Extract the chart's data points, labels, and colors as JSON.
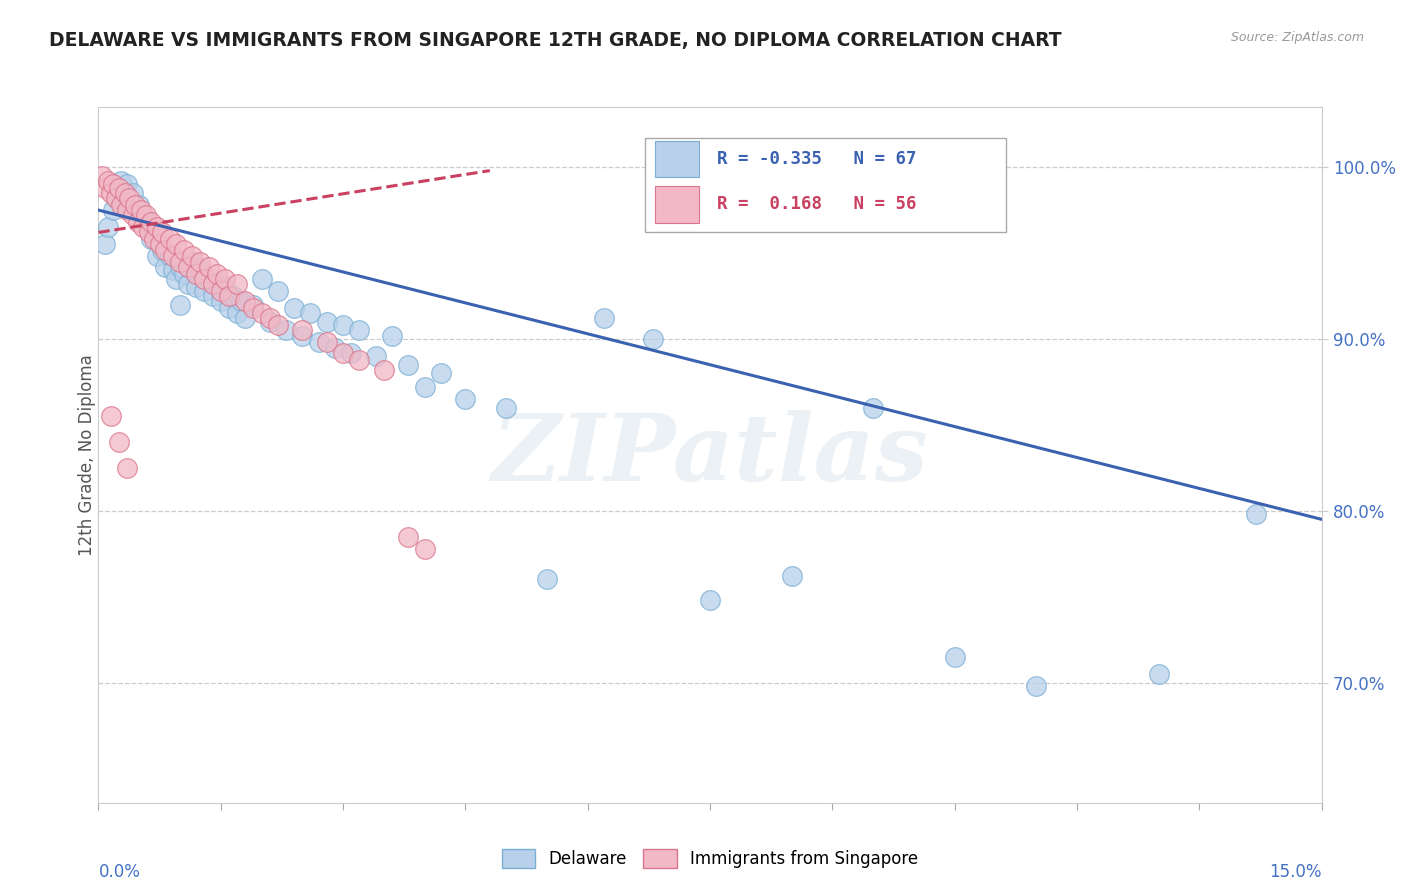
{
  "title": "DELAWARE VS IMMIGRANTS FROM SINGAPORE 12TH GRADE, NO DIPLOMA CORRELATION CHART",
  "source": "Source: ZipAtlas.com",
  "ylabel": "12th Grade, No Diploma",
  "legend_blue": "Delaware",
  "legend_pink": "Immigrants from Singapore",
  "r_blue": -0.335,
  "n_blue": 67,
  "r_pink": 0.168,
  "n_pink": 56,
  "blue_color": "#b8d0ea",
  "blue_edge": "#7aafd4",
  "pink_color": "#f2b8c6",
  "pink_edge": "#d9758a",
  "blue_line_color": "#3a62b0",
  "pink_line_color": "#c94060",
  "xlim": [
    0.0,
    15.0
  ],
  "ylim": [
    63.0,
    103.5
  ],
  "blue_scatter_x": [
    0.08,
    0.12,
    0.18,
    0.22,
    0.28,
    0.35,
    0.42,
    0.5,
    0.55,
    0.58,
    0.65,
    0.7,
    0.72,
    0.78,
    0.82,
    0.88,
    0.92,
    0.95,
    1.0,
    1.05,
    1.1,
    1.15,
    1.2,
    1.25,
    1.3,
    1.35,
    1.4,
    1.45,
    1.5,
    1.55,
    1.6,
    1.65,
    1.7,
    1.75,
    1.8,
    1.9,
    2.0,
    2.1,
    2.2,
    2.3,
    2.4,
    2.5,
    2.6,
    2.7,
    2.8,
    2.9,
    3.0,
    3.1,
    3.2,
    3.4,
    3.6,
    3.8,
    4.0,
    4.2,
    4.5,
    5.0,
    5.5,
    6.2,
    6.8,
    7.5,
    8.5,
    9.5,
    10.5,
    11.5,
    13.0,
    14.2,
    1.0
  ],
  "blue_scatter_y": [
    95.5,
    96.5,
    97.5,
    98.2,
    99.2,
    99.0,
    98.5,
    97.8,
    97.2,
    96.8,
    95.8,
    96.2,
    94.8,
    95.2,
    94.2,
    94.8,
    94.0,
    93.5,
    94.2,
    93.8,
    93.2,
    94.5,
    93.0,
    94.0,
    92.8,
    93.5,
    92.5,
    93.2,
    92.2,
    93.0,
    91.8,
    92.5,
    91.5,
    92.2,
    91.2,
    92.0,
    93.5,
    91.0,
    92.8,
    90.5,
    91.8,
    90.2,
    91.5,
    89.8,
    91.0,
    89.5,
    90.8,
    89.2,
    90.5,
    89.0,
    90.2,
    88.5,
    87.2,
    88.0,
    86.5,
    86.0,
    76.0,
    91.2,
    90.0,
    74.8,
    76.2,
    86.0,
    71.5,
    69.8,
    70.5,
    79.8,
    92.0
  ],
  "pink_scatter_x": [
    0.05,
    0.08,
    0.12,
    0.15,
    0.18,
    0.22,
    0.25,
    0.28,
    0.32,
    0.35,
    0.38,
    0.42,
    0.45,
    0.48,
    0.52,
    0.55,
    0.58,
    0.62,
    0.65,
    0.68,
    0.72,
    0.75,
    0.78,
    0.82,
    0.88,
    0.92,
    0.95,
    1.0,
    1.05,
    1.1,
    1.15,
    1.2,
    1.25,
    1.3,
    1.35,
    1.4,
    1.45,
    1.5,
    1.55,
    1.6,
    1.7,
    1.8,
    1.9,
    2.0,
    2.1,
    2.2,
    2.5,
    2.8,
    3.0,
    3.2,
    3.5,
    3.8,
    4.0,
    0.15,
    0.25,
    0.35
  ],
  "pink_scatter_y": [
    99.5,
    98.8,
    99.2,
    98.5,
    99.0,
    98.2,
    98.8,
    97.8,
    98.5,
    97.5,
    98.2,
    97.2,
    97.8,
    96.8,
    97.5,
    96.5,
    97.2,
    96.2,
    96.8,
    95.8,
    96.5,
    95.5,
    96.2,
    95.2,
    95.8,
    94.8,
    95.5,
    94.5,
    95.2,
    94.2,
    94.8,
    93.8,
    94.5,
    93.5,
    94.2,
    93.2,
    93.8,
    92.8,
    93.5,
    92.5,
    93.2,
    92.2,
    91.8,
    91.5,
    91.2,
    90.8,
    90.5,
    89.8,
    89.2,
    88.8,
    88.2,
    78.5,
    77.8,
    85.5,
    84.0,
    82.5
  ],
  "blue_trendline_x": [
    0.0,
    15.0
  ],
  "blue_trendline_y": [
    97.5,
    79.5
  ],
  "pink_trendline_x": [
    0.0,
    4.8
  ],
  "pink_trendline_y": [
    96.2,
    99.8
  ],
  "watermark": "ZIPatlas",
  "title_fontsize": 13.5,
  "tick_label_color": "#4472c4",
  "ylabel_color": "#555555"
}
